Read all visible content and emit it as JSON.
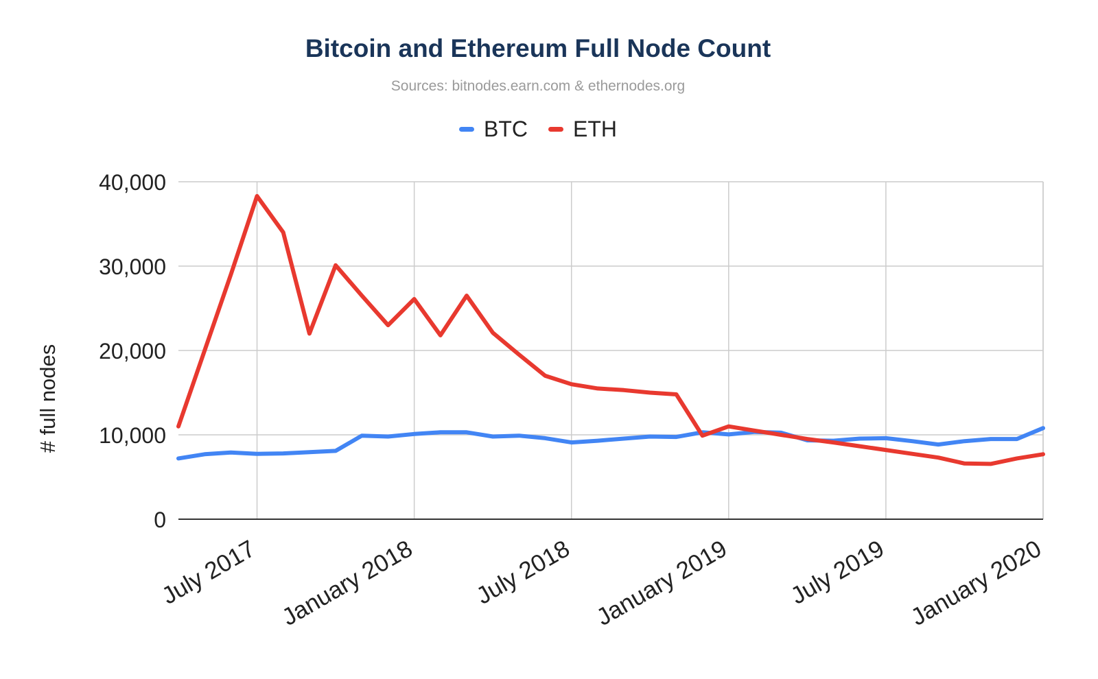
{
  "chart_data": {
    "type": "line",
    "title": "Bitcoin and Ethereum Full Node Count",
    "subtitle": "Sources: bitnodes.earn.com & ethernodes.org",
    "xlabel": "",
    "ylabel": "# full nodes",
    "ylim": [
      0,
      40000
    ],
    "y_ticks": [
      "0",
      "10,000",
      "20,000",
      "30,000",
      "40,000"
    ],
    "y_tick_values": [
      0,
      10000,
      20000,
      30000,
      40000
    ],
    "x_ticks": [
      "July 2017",
      "January 2018",
      "July 2018",
      "January 2019",
      "July 2019",
      "January 2020"
    ],
    "x_tick_positions": [
      3,
      9,
      15,
      21,
      27,
      33
    ],
    "x_range": [
      0,
      33
    ],
    "grid": true,
    "legend_position": "top-center",
    "series": [
      {
        "name": "BTC",
        "color": "#4285f4",
        "x": [
          0,
          1,
          2,
          3,
          4,
          5,
          6,
          7,
          8,
          9,
          10,
          11,
          12,
          13,
          14,
          15,
          16,
          17,
          18,
          19,
          20,
          21,
          22,
          23,
          24,
          25,
          26,
          27,
          28,
          29,
          30,
          31,
          32,
          33
        ],
        "values": [
          7200,
          7700,
          7900,
          7750,
          7800,
          7950,
          8100,
          9900,
          9800,
          10100,
          10300,
          10300,
          9800,
          9900,
          9600,
          9100,
          9300,
          9550,
          9800,
          9750,
          10300,
          10050,
          10350,
          10250,
          9350,
          9300,
          9550,
          9600,
          9250,
          8850,
          9250,
          9500,
          9500,
          10800
        ]
      },
      {
        "name": "ETH",
        "color": "#e8392f",
        "x": [
          0,
          1,
          2,
          3,
          4,
          5,
          6,
          7,
          8,
          9,
          10,
          11,
          12,
          13,
          14,
          15,
          16,
          17,
          18,
          19,
          20,
          21,
          22,
          23,
          24,
          25,
          26,
          27,
          28,
          29,
          30,
          31,
          32,
          33
        ],
        "values": [
          11000,
          20000,
          29000,
          38300,
          34000,
          22000,
          30100,
          26500,
          23000,
          26100,
          21800,
          26500,
          22100,
          19500,
          17000,
          16000,
          15500,
          15300,
          15000,
          14800,
          9900,
          11000,
          10500,
          10000,
          9500,
          9100,
          8650,
          8200,
          7750,
          7300,
          6600,
          6550,
          7200,
          7700
        ]
      }
    ]
  }
}
